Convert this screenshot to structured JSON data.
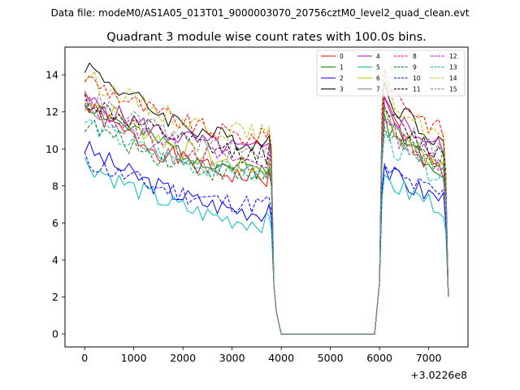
{
  "suptitle": "Data file: modeM0/AS1A05_013T01_9000003070_20756cztM0_level2_quad_clean.evt",
  "chart_data": {
    "type": "line",
    "title": "Quadrant 3 module wise count rates with 100.0s bins.",
    "xlabel": "",
    "ylabel": "",
    "x_offset_label": "+3.0226e8",
    "xlim": [
      -400,
      7800
    ],
    "ylim": [
      -0.7,
      15.5
    ],
    "xticks": [
      0,
      1000,
      2000,
      3000,
      4000,
      5000,
      6000,
      7000
    ],
    "yticks": [
      0,
      2,
      4,
      6,
      8,
      10,
      12,
      14
    ],
    "grid": false,
    "legend": {
      "position": "top-right",
      "columns": 4
    },
    "x": [
      0,
      100,
      200,
      300,
      400,
      500,
      600,
      700,
      800,
      900,
      1000,
      1100,
      1200,
      1300,
      1400,
      1500,
      1600,
      1700,
      1800,
      1900,
      2000,
      2100,
      2200,
      2300,
      2400,
      2500,
      2600,
      2700,
      2800,
      2900,
      3000,
      3100,
      3200,
      3300,
      3400,
      3500,
      3600,
      3700,
      3750,
      3800,
      3850,
      3900,
      4000,
      5900,
      6000,
      6050,
      6100,
      6200,
      6300,
      6400,
      6500,
      6600,
      6700,
      6800,
      6900,
      7000,
      7100,
      7200,
      7300,
      7350,
      7400
    ],
    "series": [
      {
        "name": "0",
        "color": "#ff0000",
        "dash": "solid",
        "start": 12.3,
        "end": 8.4,
        "restart": 12.8,
        "late": 8.7,
        "seed": 1
      },
      {
        "name": "1",
        "color": "#008000",
        "dash": "solid",
        "start": 12.6,
        "end": 8.9,
        "restart": 11.9,
        "late": 9.0,
        "seed": 2
      },
      {
        "name": "2",
        "color": "#0000ff",
        "dash": "solid",
        "start": 10.1,
        "end": 6.6,
        "restart": 9.1,
        "late": 7.3,
        "seed": 3
      },
      {
        "name": "3",
        "color": "#000000",
        "dash": "solid",
        "start": 14.6,
        "end": 10.3,
        "restart": 13.6,
        "late": 10.4,
        "seed": 4
      },
      {
        "name": "4",
        "color": "#bf00bf",
        "dash": "solid",
        "start": 12.7,
        "end": 9.9,
        "restart": 12.8,
        "late": 10.0,
        "seed": 5
      },
      {
        "name": "5",
        "color": "#00bfbf",
        "dash": "solid",
        "start": 9.3,
        "end": 6.0,
        "restart": 8.6,
        "late": 6.9,
        "seed": 6
      },
      {
        "name": "6",
        "color": "#bfbf00",
        "dash": "solid",
        "start": 13.0,
        "end": 9.0,
        "restart": 12.1,
        "late": 9.0,
        "seed": 7
      },
      {
        "name": "7",
        "color": "#808080",
        "dash": "solid",
        "start": 12.2,
        "end": 8.6,
        "restart": 11.6,
        "late": 9.1,
        "seed": 8
      },
      {
        "name": "8",
        "color": "#ff0000",
        "dash": "dashed",
        "start": 13.9,
        "end": 10.6,
        "restart": 14.3,
        "late": 10.9,
        "seed": 9
      },
      {
        "name": "9",
        "color": "#008000",
        "dash": "dashed",
        "start": 11.4,
        "end": 8.5,
        "restart": 11.2,
        "late": 9.3,
        "seed": 10
      },
      {
        "name": "10",
        "color": "#0000ff",
        "dash": "dashed",
        "start": 9.4,
        "end": 7.0,
        "restart": 9.2,
        "late": 7.5,
        "seed": 11
      },
      {
        "name": "11",
        "color": "#000000",
        "dash": "dashed",
        "start": 12.7,
        "end": 9.7,
        "restart": 12.3,
        "late": 9.7,
        "seed": 12
      },
      {
        "name": "12",
        "color": "#bf00bf",
        "dash": "dashed",
        "start": 12.5,
        "end": 9.3,
        "restart": 11.6,
        "late": 9.3,
        "seed": 13
      },
      {
        "name": "13",
        "color": "#00bfbf",
        "dash": "dashed",
        "start": 11.5,
        "end": 8.6,
        "restart": 10.8,
        "late": 8.5,
        "seed": 14
      },
      {
        "name": "14",
        "color": "#bfbf00",
        "dash": "dashed",
        "start": 14.0,
        "end": 10.8,
        "restart": 13.6,
        "late": 10.6,
        "seed": 15
      },
      {
        "name": "15",
        "color": "#808080",
        "dash": "dashed",
        "start": 12.9,
        "end": 9.8,
        "restart": 12.4,
        "late": 9.8,
        "seed": 16
      }
    ]
  }
}
